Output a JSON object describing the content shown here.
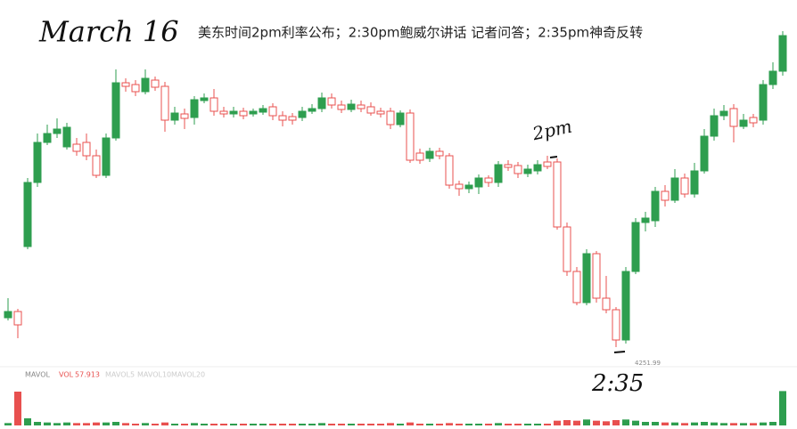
{
  "chart_data": {
    "type": "candlestick",
    "title": "March 16",
    "subtitle": "美东时间2pm利率公布；2:30pm鲍威尔讲话 记者问答；2:35pm神奇反转",
    "annotations": [
      "2pm",
      "2:35"
    ],
    "up_color": "#2e9e4f",
    "down_color": "#e8504f",
    "ylim": [
      4249,
      4369
    ],
    "open": [
      4261.9,
      4264,
      4285.9,
      4307.5,
      4321,
      4324,
      4319.5,
      4320.4,
      4321,
      4316.5,
      4309.9,
      4322.5,
      4341.1,
      4340.5,
      4338.1,
      4342,
      4339.9,
      4328.5,
      4330.6,
      4329.4,
      4335.1,
      4336,
      4331.5,
      4330.6,
      4331.5,
      4330.6,
      4331.2,
      4333,
      4330,
      4329.7,
      4329.4,
      4331.5,
      4332.4,
      4336,
      4333.6,
      4332.1,
      4333.6,
      4333,
      4331.5,
      4331.5,
      4327,
      4330.9,
      4317.4,
      4315.6,
      4318,
      4316.5,
      4306.9,
      4305.4,
      4306,
      4309,
      4307.5,
      4313.5,
      4313.2,
      4310.5,
      4311.4,
      4314.4,
      4314.4,
      4292.5,
      4277.5,
      4267,
      4283.5,
      4268.5,
      4264.6,
      4254.4,
      4277.5,
      4294,
      4294.6,
      4304.5,
      4301.5,
      4309,
      4303.6,
      4311.4,
      4323.1,
      4330,
      4332.4,
      4326.4,
      4329.4,
      4328.5,
      4340.5,
      4345
    ],
    "high": [
      4268.5,
      4264.9,
      4309,
      4324,
      4327,
      4329.1,
      4327.6,
      4322.5,
      4324,
      4318.6,
      4324,
      4345.6,
      4342.6,
      4342,
      4345.6,
      4343.2,
      4341.4,
      4333,
      4332.4,
      4336.6,
      4337.5,
      4339,
      4333,
      4333,
      4332.7,
      4332.4,
      4333.6,
      4334.2,
      4331.5,
      4330.9,
      4333,
      4333.9,
      4337.8,
      4337.5,
      4335.1,
      4335.4,
      4335.1,
      4334.5,
      4332.7,
      4332.7,
      4331.8,
      4332.1,
      4318.9,
      4319.2,
      4319.2,
      4317.4,
      4308.1,
      4307.8,
      4310.2,
      4309.9,
      4314.7,
      4315,
      4314.4,
      4313.5,
      4315,
      4316.5,
      4315.6,
      4294,
      4279,
      4285,
      4284.4,
      4276,
      4265.5,
      4279,
      4295.5,
      4297.6,
      4306,
      4306.6,
      4312,
      4310.5,
      4314.1,
      4325.5,
      4332.4,
      4333.6,
      4333.9,
      4330.6,
      4330.6,
      4342,
      4348,
      4358.5
    ],
    "low": [
      4261,
      4255,
      4285,
      4306,
      4320.1,
      4322.5,
      4318.6,
      4316.5,
      4315,
      4309,
      4309,
      4321.6,
      4338.1,
      4336.6,
      4337.2,
      4338.4,
      4324.6,
      4327,
      4325.5,
      4327,
      4334.2,
      4330,
      4329.4,
      4329.4,
      4328.8,
      4329.7,
      4330.3,
      4328.5,
      4326.4,
      4327,
      4328.2,
      4330.6,
      4331.2,
      4332.4,
      4330.9,
      4331.2,
      4331.2,
      4330,
      4329.4,
      4325.5,
      4326.1,
      4314.1,
      4313.8,
      4314.4,
      4315.3,
      4305.4,
      4303,
      4303.9,
      4303.6,
      4306,
      4306,
      4311.4,
      4309,
      4309.3,
      4310.2,
      4312,
      4291.6,
      4276,
      4266.1,
      4266.1,
      4267,
      4263.4,
      4251.99,
      4253.2,
      4276.6,
      4291,
      4292.5,
      4299.4,
      4300.6,
      4302.4,
      4302.4,
      4310.5,
      4321.6,
      4328.5,
      4321,
      4325.5,
      4326.1,
      4327,
      4339,
      4343.5
    ],
    "close": [
      4264,
      4259.5,
      4307.5,
      4321,
      4324,
      4325.5,
      4326.1,
      4318,
      4316.5,
      4309.9,
      4322.5,
      4341.1,
      4339.9,
      4338.1,
      4342.6,
      4339.6,
      4328.5,
      4330.9,
      4329.1,
      4335.4,
      4336,
      4331.5,
      4330.6,
      4331.5,
      4330,
      4331.5,
      4332.4,
      4330,
      4328.5,
      4328.5,
      4331.5,
      4332.4,
      4336,
      4333.6,
      4332.1,
      4333.9,
      4332.4,
      4330.9,
      4330.6,
      4327,
      4330.9,
      4315,
      4315,
      4318,
      4316.5,
      4306.6,
      4305.4,
      4306.6,
      4309,
      4307.5,
      4313.5,
      4312.6,
      4310.5,
      4312,
      4313.5,
      4312.9,
      4292.5,
      4277.5,
      4267,
      4283.5,
      4268.5,
      4264.6,
      4254.4,
      4277.5,
      4294,
      4295.5,
      4304.5,
      4301.5,
      4309,
      4303.6,
      4311.4,
      4323.1,
      4330,
      4331.5,
      4326.4,
      4328.5,
      4327.6,
      4340.5,
      4345,
      4357
    ],
    "volume": {
      "name": "VOL",
      "legend": [
        "MAVOL",
        "MAVOL5",
        "MAVOL10",
        "MAVOL20"
      ],
      "ylim": [
        0,
        60
      ],
      "values": [
        4,
        57,
        12,
        6,
        5,
        4,
        5,
        4,
        4,
        5,
        5,
        6,
        4,
        3,
        4,
        3,
        5,
        3,
        3,
        4,
        3,
        3,
        3,
        3,
        3,
        3,
        3,
        3,
        3,
        3,
        3,
        3,
        4,
        3,
        3,
        3,
        3,
        3,
        3,
        4,
        3,
        5,
        3,
        3,
        3,
        4,
        3,
        3,
        3,
        3,
        4,
        3,
        3,
        3,
        3,
        3,
        8,
        9,
        8,
        10,
        8,
        7,
        9,
        10,
        8,
        6,
        6,
        5,
        5,
        4,
        5,
        6,
        5,
        4,
        4,
        4,
        4,
        5,
        6,
        57.913
      ]
    }
  }
}
